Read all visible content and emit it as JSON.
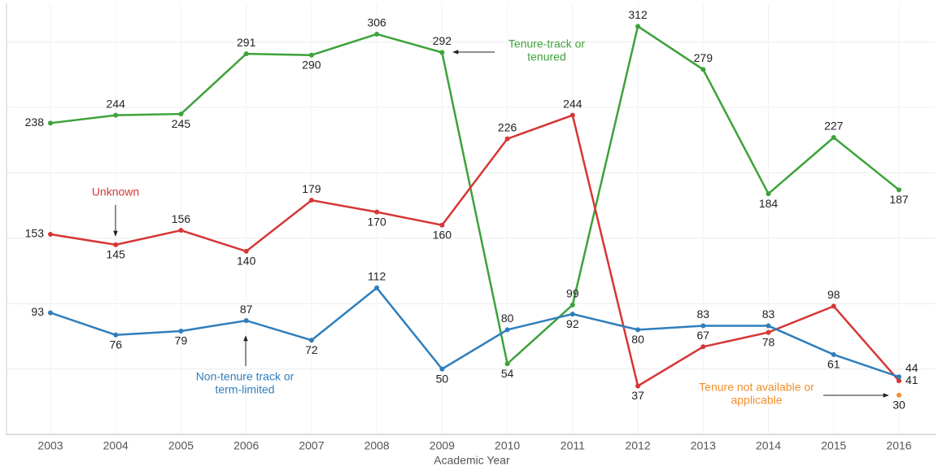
{
  "chart_data": {
    "type": "line",
    "x_label": "Academic Year",
    "categories": [
      "2003",
      "2004",
      "2005",
      "2006",
      "2007",
      "2008",
      "2009",
      "2010",
      "2011",
      "2012",
      "2013",
      "2014",
      "2015",
      "2016"
    ],
    "series": [
      {
        "name": "Tenure-track or tenured",
        "color": "#3da23a",
        "values": [
          238,
          244,
          245,
          291,
          290,
          306,
          292,
          54,
          99,
          312,
          279,
          184,
          227,
          187
        ]
      },
      {
        "name": "Unknown",
        "color": "#d63636",
        "values": [
          153,
          145,
          156,
          140,
          179,
          170,
          160,
          226,
          244,
          37,
          67,
          78,
          98,
          41
        ]
      },
      {
        "name": "Non-tenure track or term-limited",
        "color": "#2f7ebc",
        "values": [
          93,
          76,
          79,
          87,
          72,
          112,
          50,
          80,
          92,
          80,
          83,
          83,
          61,
          44
        ]
      },
      {
        "name": "Tenure not available or applicable",
        "color": "#f28e2b",
        "values": [
          null,
          null,
          null,
          null,
          null,
          null,
          null,
          null,
          null,
          null,
          null,
          null,
          null,
          30
        ]
      }
    ],
    "annotations": [
      {
        "lines": [
          "Tenure-track or",
          "tenured"
        ],
        "color": "#3da23a"
      },
      {
        "lines": [
          "Unknown"
        ],
        "color": "#d63636"
      },
      {
        "lines": [
          "Non-tenure track or",
          "term-limited"
        ],
        "color": "#2f7ebc"
      },
      {
        "lines": [
          "Tenure not available or",
          "applicable"
        ],
        "color": "#f28e2b"
      }
    ],
    "ylim": [
      0,
      329
    ],
    "yticks": [
      0,
      50,
      100,
      150,
      200,
      250,
      300
    ],
    "grid": true
  }
}
